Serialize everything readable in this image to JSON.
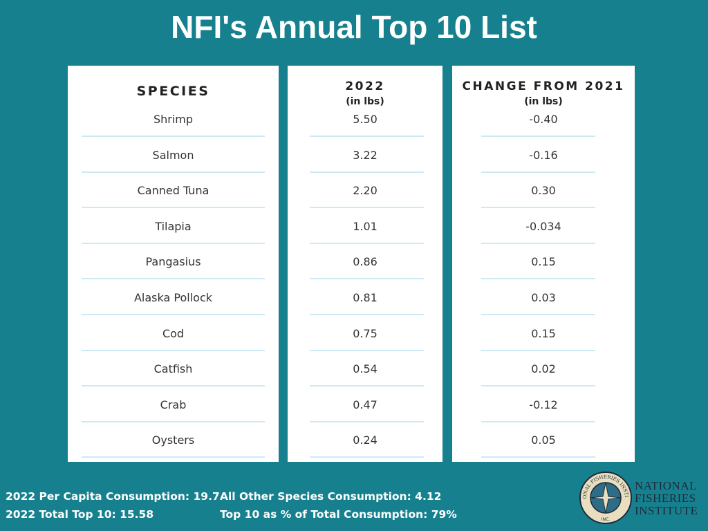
{
  "title": "NFI's Annual Top 10 List",
  "table": {
    "columns": [
      {
        "title": "SPECIES"
      },
      {
        "title": "2022",
        "unit": "(in lbs)"
      },
      {
        "title": "CHANGE FROM 2021",
        "unit": "(in lbs)"
      }
    ],
    "rows": [
      [
        "Shrimp",
        "5.50",
        "-0.40"
      ],
      [
        "Salmon",
        "3.22",
        "-0.16"
      ],
      [
        "Canned Tuna",
        "2.20",
        "0.30"
      ],
      [
        "Tilapia",
        "1.01",
        "-0.034"
      ],
      [
        "Pangasius",
        "0.86",
        "0.15"
      ],
      [
        "Alaska Pollock",
        "0.81",
        "0.03"
      ],
      [
        "Cod",
        "0.75",
        "0.15"
      ],
      [
        "Catfish",
        "0.54",
        "0.02"
      ],
      [
        "Crab",
        "0.47",
        "-0.12"
      ],
      [
        "Oysters",
        "0.24",
        "0.05"
      ]
    ]
  },
  "footer": {
    "stats": [
      "2022  Per Capita Consumption: 19.7",
      "All Other Species Consumption: 4.12",
      "2022 Total Top 10: 15.58",
      "Top 10 as % of Total Consumption: 79%"
    ]
  },
  "logo": {
    "seal": "NATIONAL FISHERIES INSTITUTE",
    "seal_mark": "INC.",
    "lines": [
      "NATIONAL",
      "FISHERIES",
      "INSTITUTE"
    ]
  }
}
